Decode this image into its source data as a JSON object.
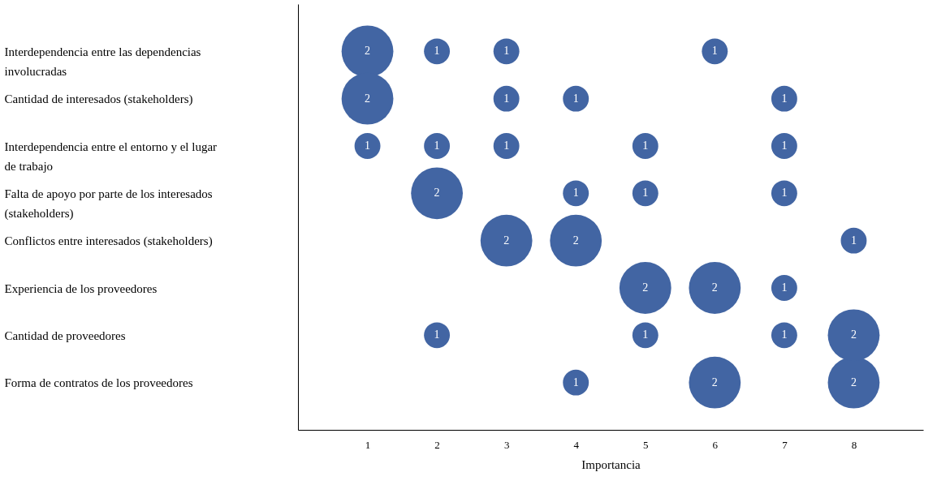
{
  "chart_data": {
    "type": "bubble",
    "orientation": "horizontal",
    "xlabel": "Importancia",
    "categories": [
      "Interdependencia entre las dependencias involucradas",
      "Cantidad de interesados (stakeholders)",
      "Interdependencia entre el entorno y el lugar de trabajo",
      "Falta de apoyo por parte de los interesados (stakeholders)",
      "Conflictos entre interesados (stakeholders)",
      "Experiencia de los proveedores",
      "Cantidad de proveedores",
      "Forma de contratos de los proveedores"
    ],
    "xlim": [
      0,
      9
    ],
    "xticks": [
      1,
      2,
      3,
      4,
      5,
      6,
      7,
      8
    ],
    "series": [
      {
        "color": "#4265a3",
        "values": [
          1,
          1,
          1,
          2,
          3,
          5,
          2,
          4
        ],
        "sizes": [
          1,
          1,
          0.25,
          1,
          1,
          1,
          0.25,
          0.25
        ]
      },
      {
        "color": "#4265a3",
        "values": [
          2,
          3,
          2,
          4,
          4,
          6,
          5,
          6
        ],
        "sizes": [
          0.25,
          0.25,
          0.25,
          0.25,
          1,
          1,
          0.25,
          1
        ]
      },
      {
        "color": "#4265a3",
        "values": [
          3,
          4,
          3,
          5,
          8,
          7,
          7,
          8
        ],
        "sizes": [
          0.25,
          0.25,
          0.25,
          0.25,
          0.25,
          0.25,
          0.25,
          1
        ]
      },
      {
        "color": "#4265a3",
        "values": [
          6,
          7,
          5,
          7,
          null,
          null,
          8,
          null
        ],
        "sizes": [
          0.25,
          0.25,
          0.25,
          0.25,
          null,
          null,
          1,
          null
        ]
      },
      {
        "color": "#4265a3",
        "values": [
          null,
          null,
          7,
          null,
          null,
          null,
          null,
          null
        ],
        "sizes": [
          null,
          null,
          0.25,
          null,
          null,
          null,
          null,
          null
        ]
      }
    ],
    "annotations": [
      "2",
      "2",
      "1",
      "2",
      "2",
      "2",
      "1",
      "1",
      "1",
      "1",
      "1",
      "1",
      "2",
      "2",
      "1",
      "2",
      "1",
      "1",
      "1",
      "1",
      "1",
      "1",
      "1",
      "2",
      "1",
      "1",
      "1",
      "1",
      "2",
      "1"
    ],
    "grid": false
  }
}
